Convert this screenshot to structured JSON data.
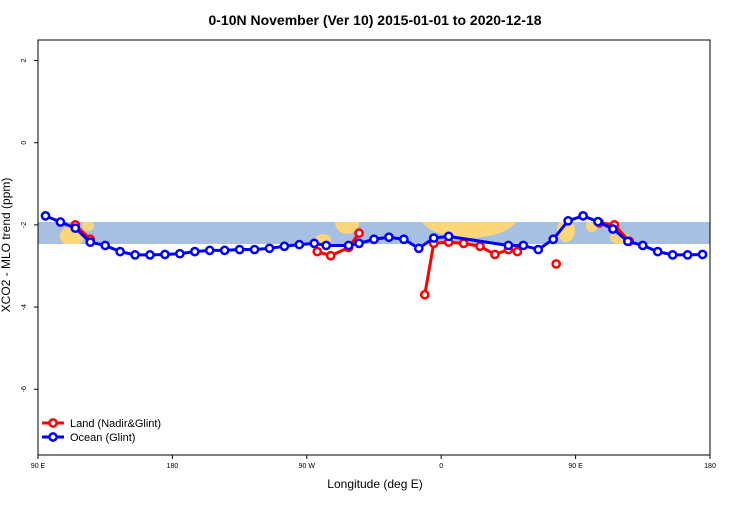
{
  "chart_data": {
    "type": "line",
    "title": "0-10N November (Ver 10)   2015-01-01 to 2020-12-18",
    "x_label": "Longitude (deg E)",
    "y_label": "XCO2 - MLO trend (ppm)",
    "xlim": [
      90,
      540
    ],
    "xticks": [
      {
        "value": 90,
        "label": "90 E"
      },
      180,
      {
        "value": 270,
        "label": "90 W"
      },
      {
        "value": 360,
        "label": "0"
      },
      {
        "value": 450,
        "label": "90 E"
      },
      {
        "value": 540,
        "label": "180"
      }
    ],
    "ylim": [
      -7.6,
      2.5
    ],
    "yticks": [
      -6,
      -4,
      -2,
      0,
      2
    ],
    "legend": "bottom-left",
    "series": [
      {
        "name": "Land (Nadir&Glint)",
        "color": "#ff0000",
        "x": [
          115,
          125,
          null,
          277,
          286,
          298,
          305,
          null,
          349,
          355,
          365,
          375,
          386,
          396,
          405,
          411,
          null,
          437,
          null,
          466,
          476,
          486
        ],
        "values": [
          -2.0,
          -2.35,
          null,
          -2.65,
          -2.75,
          -2.55,
          -2.2,
          null,
          -3.7,
          -2.45,
          -2.42,
          -2.45,
          -2.52,
          -2.72,
          -2.6,
          -2.65,
          null,
          -2.95,
          null,
          -1.95,
          -2.0,
          -2.4
        ]
      },
      {
        "name": "Ocean (Glint)",
        "color": "#0000ff",
        "x": [
          95,
          105,
          115,
          125,
          135,
          145,
          155,
          165,
          175,
          185,
          195,
          205,
          215,
          225,
          235,
          245,
          255,
          265,
          275,
          283,
          298,
          305,
          315,
          325,
          335,
          345,
          355,
          365,
          405,
          415,
          425,
          435,
          445,
          455,
          465,
          475,
          485,
          495,
          505,
          515,
          525,
          535
        ],
        "values": [
          -1.78,
          -1.93,
          -2.08,
          -2.42,
          -2.5,
          -2.65,
          -2.73,
          -2.73,
          -2.72,
          -2.7,
          -2.65,
          -2.62,
          -2.62,
          -2.6,
          -2.6,
          -2.57,
          -2.52,
          -2.48,
          -2.45,
          -2.5,
          -2.5,
          -2.45,
          -2.35,
          -2.3,
          -2.35,
          -2.57,
          -2.32,
          -2.28,
          -2.5,
          -2.5,
          -2.6,
          -2.35,
          -1.9,
          -1.78,
          -1.92,
          -2.1,
          -2.4,
          -2.5,
          -2.65,
          -2.73,
          -2.73,
          -2.72
        ]
      }
    ]
  }
}
